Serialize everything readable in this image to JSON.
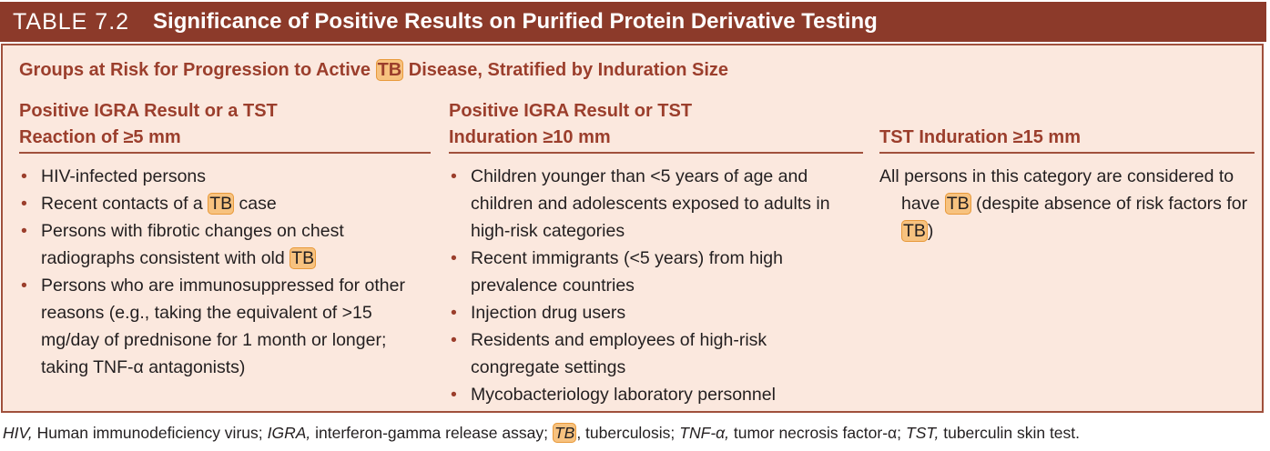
{
  "header": {
    "label": "TABLE 7.2",
    "title": "Significance of Positive Results on Purified Protein Derivative Testing"
  },
  "highlight": "TB",
  "subtitle": [
    "Groups at Risk for Progression to Active ",
    "TB",
    " Disease, Stratified by Induration Size"
  ],
  "columns": [
    {
      "heading": [
        "Positive IGRA Result or a TST",
        "Reaction of ≥5 mm"
      ],
      "items": [
        [
          "HIV-infected persons"
        ],
        [
          "Recent contacts of a ",
          "TB",
          " case"
        ],
        [
          "Persons with fibrotic changes on chest radiographs consistent with old ",
          "TB"
        ],
        [
          "Persons who are immunosuppressed for other reasons (e.g., taking the equivalent of >15 mg/day of prednisone for 1 month or longer; taking TNF-α antagonists)"
        ]
      ]
    },
    {
      "heading": [
        "Positive IGRA Result or TST",
        "Induration ≥10 mm"
      ],
      "items": [
        [
          "Children younger than <5 years of age and children and adolescents exposed to adults in high-risk categories"
        ],
        [
          "Recent immigrants (<5 years) from high prevalence countries"
        ],
        [
          "Injection drug users"
        ],
        [
          "Residents and employees of high-risk congregate settings"
        ],
        [
          "Mycobacteriology laboratory personnel"
        ]
      ]
    },
    {
      "heading": [
        "TST Induration ≥15 mm"
      ],
      "paragraph": [
        "All persons in this category are considered to have ",
        "TB",
        " (despite absence of risk factors for ",
        "TB",
        ")"
      ]
    }
  ],
  "footnote": [
    [
      "HIV,",
      " Human immunodeficiency virus;"
    ],
    [
      "IGRA,",
      " interferon-gamma release assay;"
    ],
    [
      "TB",
      ", tuberculosis;"
    ],
    [
      "TNF-α,",
      " tumor necrosis factor-α;"
    ],
    [
      "TST,",
      " tuberculin skin test."
    ]
  ]
}
